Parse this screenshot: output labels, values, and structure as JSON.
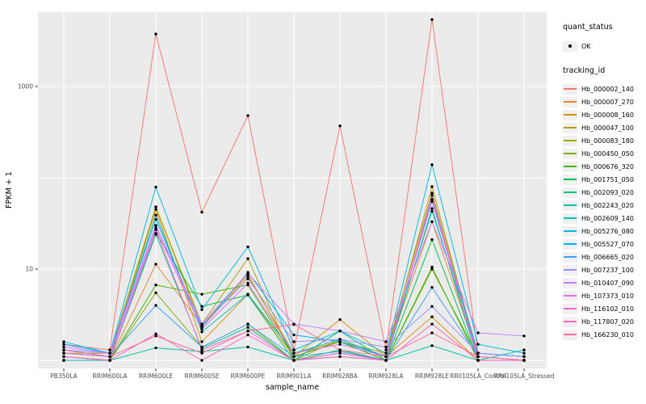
{
  "chart": {
    "xlabel": "sample_name",
    "ylabel": "FPKM + 1",
    "panel_bg": "#EBEBEB",
    "grid_color": "#FFFFFF",
    "point_color": "#000000",
    "tick_color": "#333333",
    "tick_label_color": "#4D4D4D",
    "y_tick_labels": [
      {
        "value": 10,
        "label": "10"
      },
      {
        "value": 1000,
        "label": "1000"
      }
    ],
    "y_gridline_values": [
      1,
      10,
      100,
      1000
    ]
  },
  "legend": {
    "quant_status": {
      "title": "quant_status",
      "items": [
        {
          "label": "OK",
          "symbol": "black-point"
        }
      ]
    },
    "tracking_id": {
      "title": "tracking_id"
    }
  },
  "chart_data": {
    "type": "line",
    "title": "",
    "xlabel": "sample_name",
    "ylabel": "FPKM + 1",
    "yscale": "log10",
    "ylim": [
      0.8,
      7000
    ],
    "grid": true,
    "legend_position": "right",
    "marker": "black point (quant_status = OK at every sample)",
    "x_categories": [
      "PB350LA",
      "RRIM600LA",
      "RRIM600LE",
      "RRIM600SE",
      "RRIM600PE",
      "RRIM901LA",
      "RRIM928BA",
      "RRIM928LA",
      "RRIM928LE",
      "RRII105LA_Control",
      "RRII105LA_Stressed"
    ],
    "series": [
      {
        "name": "Hb_000002_140",
        "color": "#F8766D",
        "values": [
          1.5,
          1.3,
          3750,
          42,
          480,
          1.3,
          370,
          1.3,
          5400,
          1.2,
          1.1
        ]
      },
      {
        "name": "Hb_000007_270",
        "color": "#E88526",
        "values": [
          1.1,
          1.0,
          11.3,
          2.4,
          8.8,
          1.1,
          1.6,
          1.1,
          33,
          1.1,
          1.0
        ]
      },
      {
        "name": "Hb_000008_160",
        "color": "#D89000",
        "values": [
          1.2,
          1.1,
          45,
          1.6,
          5.3,
          1.1,
          2.8,
          1.1,
          3.0,
          1.0,
          1.0
        ]
      },
      {
        "name": "Hb_000047_100",
        "color": "#C09B00",
        "values": [
          1.2,
          1.2,
          48,
          2.3,
          8.3,
          1.2,
          1.6,
          1.2,
          68,
          1.2,
          1.1
        ]
      },
      {
        "name": "Hb_000083_180",
        "color": "#A3A500",
        "values": [
          1.1,
          1.0,
          48,
          2.5,
          13,
          1.0,
          1.7,
          1.1,
          80,
          1.1,
          1.0
        ]
      },
      {
        "name": "Hb_000450_050",
        "color": "#7CAE00",
        "values": [
          1.0,
          1.0,
          5.5,
          1.4,
          2.5,
          1.0,
          1.2,
          1.0,
          10.5,
          1.0,
          1.0
        ]
      },
      {
        "name": "Hb_000676_320",
        "color": "#39B600",
        "values": [
          1.1,
          1.0,
          6.7,
          5.3,
          6.7,
          1.1,
          1.6,
          1.0,
          10.0,
          1.1,
          1.0
        ]
      },
      {
        "name": "Hb_001751_050",
        "color": "#00BB4E",
        "values": [
          1.0,
          1.0,
          24.6,
          3.9,
          5.2,
          1.0,
          1.3,
          1.0,
          21,
          1.0,
          1.0
        ]
      },
      {
        "name": "Hb_002093_020",
        "color": "#00BF7D",
        "values": [
          1.0,
          1.0,
          24,
          1.35,
          2.3,
          1.0,
          2.1,
          1.0,
          46,
          1.0,
          1.0
        ]
      },
      {
        "name": "Hb_002243_020",
        "color": "#00C1A3",
        "values": [
          1.0,
          1.0,
          1.37,
          1.25,
          1.4,
          1.0,
          1.1,
          1.0,
          1.45,
          1.0,
          1.3
        ]
      },
      {
        "name": "Hb_002609_140",
        "color": "#00BFC4",
        "values": [
          1.3,
          1.1,
          39,
          2.05,
          5.3,
          1.2,
          1.7,
          1.1,
          43,
          1.2,
          1.1
        ]
      },
      {
        "name": "Hb_005276_080",
        "color": "#00BAE0",
        "values": [
          1.6,
          1.2,
          79,
          3.6,
          17.5,
          1.3,
          2.1,
          1.2,
          139,
          1.5,
          1.2
        ]
      },
      {
        "name": "Hb_005527_070",
        "color": "#00B0F6",
        "values": [
          1.5,
          1.2,
          35,
          2.3,
          9.2,
          1.9,
          1.6,
          1.1,
          58,
          1.2,
          1.1
        ]
      },
      {
        "name": "Hb_006665_020",
        "color": "#35A2FF",
        "values": [
          1.2,
          1.1,
          4.0,
          1.4,
          2.5,
          1.1,
          1.25,
          1.0,
          6.3,
          1.1,
          1.0
        ]
      },
      {
        "name": "Hb_007237_100",
        "color": "#9590FF",
        "values": [
          1.3,
          1.2,
          30,
          2.4,
          7.8,
          1.6,
          1.7,
          1.4,
          3.9,
          1.2,
          1.1
        ]
      },
      {
        "name": "Hb_010407_090",
        "color": "#C77CFF",
        "values": [
          1.4,
          1.2,
          30,
          2.5,
          9.0,
          2.5,
          2.1,
          1.6,
          33,
          2.0,
          1.85
        ]
      },
      {
        "name": "Hb_107373_010",
        "color": "#E76BF3",
        "values": [
          1.2,
          1.1,
          28,
          2.2,
          7.0,
          1.2,
          1.5,
          1.1,
          55,
          1.1,
          1.0
        ]
      },
      {
        "name": "Hb_116102_010",
        "color": "#FA62DB",
        "values": [
          1.1,
          1.0,
          27,
          1.3,
          2.1,
          1.0,
          1.2,
          1.0,
          64,
          1.0,
          1.0
        ]
      },
      {
        "name": "Hb_117807_020",
        "color": "#FF62BC",
        "values": [
          1.1,
          1.0,
          1.95,
          1.0,
          1.9,
          1.0,
          1.1,
          1.0,
          2.5,
          1.0,
          1.0
        ]
      },
      {
        "name": "Hb_166230_010",
        "color": "#FF6A98",
        "values": [
          1.3,
          1.1,
          1.85,
          1.2,
          2.1,
          2.47,
          1.3,
          1.1,
          2.0,
          1.1,
          1.0
        ]
      }
    ]
  }
}
